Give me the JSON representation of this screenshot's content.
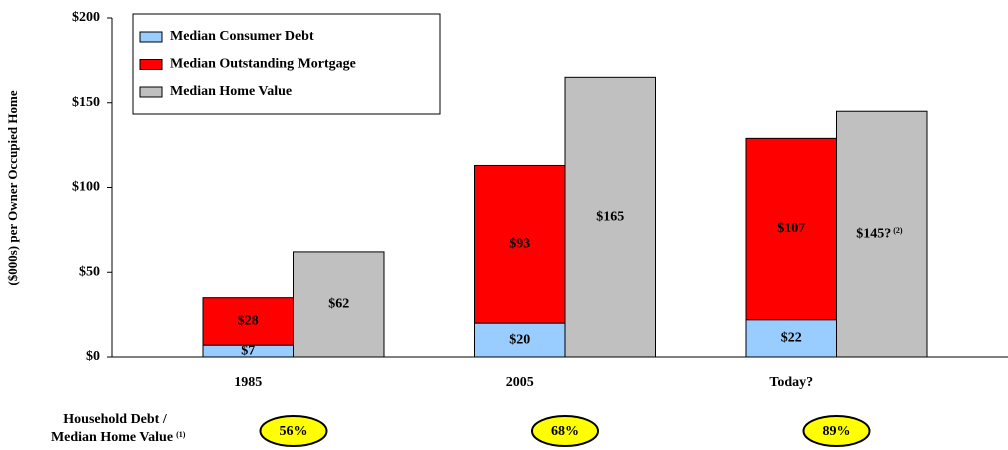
{
  "chart_data": {
    "type": "bar",
    "y_label": "($000s) per Owner Occupied Home",
    "categories": [
      "1985",
      "2005",
      "Today?"
    ],
    "series": [
      {
        "name": "Median Consumer Debt",
        "color": "#99ccff",
        "stack": true,
        "values": [
          7,
          20,
          22
        ],
        "value_labels": [
          "$7",
          "$20",
          "$22"
        ]
      },
      {
        "name": "Median Outstanding Mortgage",
        "color": "#ff0000",
        "stack": true,
        "values": [
          28,
          93,
          107
        ],
        "value_labels": [
          "$28",
          "$93",
          "$107"
        ]
      },
      {
        "name": "Median Home Value",
        "color": "#c0c0c0",
        "stack": false,
        "values": [
          62,
          165,
          145
        ],
        "value_labels": [
          "$62",
          "$165",
          "$145?"
        ],
        "value_label_notes": [
          null,
          null,
          "(2)"
        ]
      }
    ],
    "ylim": [
      0,
      200
    ],
    "yticks": [
      {
        "value": 0,
        "label": "$0"
      },
      {
        "value": 50,
        "label": "$50"
      },
      {
        "value": 100,
        "label": "$100"
      },
      {
        "value": 150,
        "label": "$150"
      },
      {
        "value": 200,
        "label": "$200"
      }
    ],
    "legend": "upper left",
    "ratio_row": {
      "label_lines": [
        "Household Debt /",
        "Median Home Value"
      ],
      "label_note": "(1)",
      "values": [
        56,
        68,
        89
      ],
      "value_labels": [
        "56%",
        "68%",
        "89%"
      ],
      "color": "#ffff00"
    }
  }
}
